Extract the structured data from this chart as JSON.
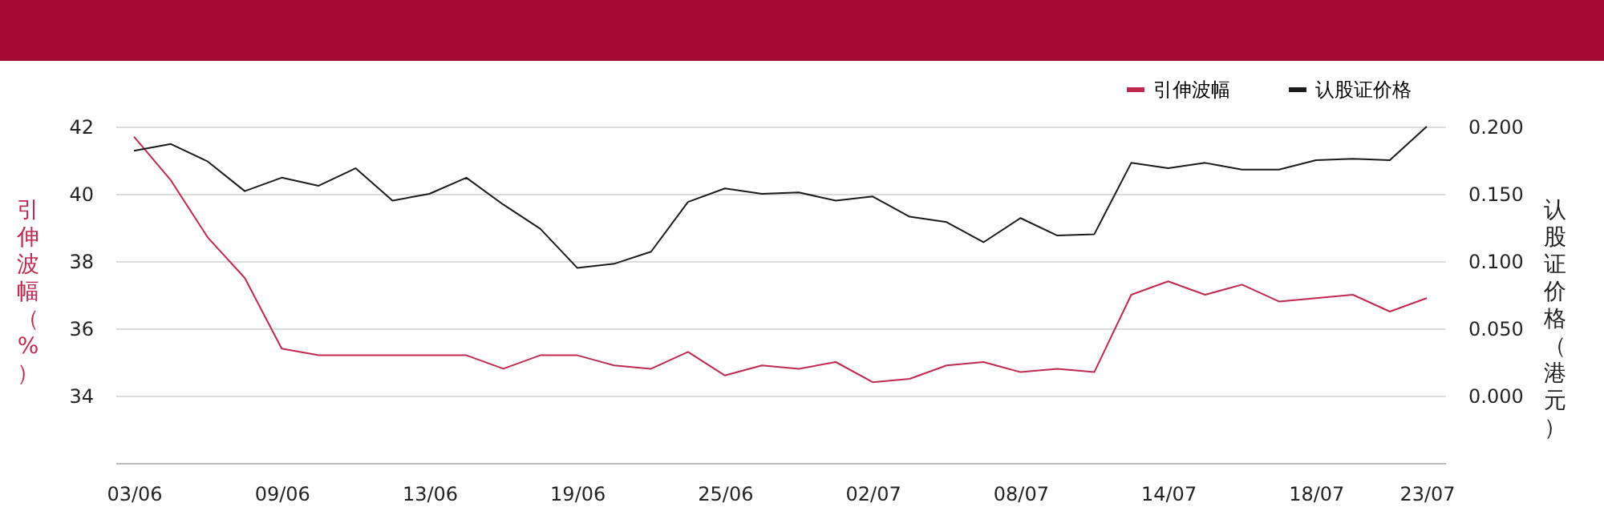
{
  "chart_data": {
    "type": "line",
    "ylabel": "引伸波幅（%）",
    "y2label": "认股证价格（港元）",
    "categories": [
      "03/06",
      null,
      null,
      null,
      "09/06",
      null,
      null,
      null,
      "13/06",
      null,
      null,
      null,
      "19/06",
      null,
      null,
      null,
      "25/06",
      null,
      null,
      null,
      "02/07",
      null,
      null,
      null,
      "08/07",
      null,
      null,
      null,
      "14/07",
      null,
      null,
      null,
      "18/07",
      null,
      null,
      "23/07"
    ],
    "series": [
      {
        "name": "引伸波幅",
        "color": "#c0284e",
        "values": [
          41.7,
          40.4,
          38.7,
          37.5,
          35.4,
          35.2,
          35.2,
          35.2,
          35.2,
          35.2,
          34.8,
          35.2,
          35.2,
          34.9,
          34.8,
          35.3,
          34.6,
          34.9,
          34.8,
          35.0,
          34.4,
          34.5,
          34.9,
          35.0,
          34.7,
          34.8,
          34.7,
          37.0,
          37.4,
          37.0,
          37.3,
          36.8,
          36.9,
          37.0,
          36.5,
          36.9
        ]
      },
      {
        "name": "认股证价格",
        "color": "#1a1a1a",
        "axis": "y2",
        "values": [
          0.182,
          0.187,
          0.174,
          0.152,
          0.162,
          0.156,
          0.169,
          0.145,
          0.15,
          0.162,
          0.142,
          0.124,
          0.095,
          0.098,
          0.107,
          0.144,
          0.154,
          0.15,
          0.151,
          0.145,
          0.148,
          0.133,
          0.129,
          0.114,
          0.132,
          0.119,
          0.12,
          0.173,
          0.169,
          0.173,
          0.168,
          0.168,
          0.175,
          0.176,
          0.175,
          0.2
        ]
      }
    ],
    "ylim": [
      32,
      42
    ],
    "yticks": [
      34,
      36,
      38,
      40,
      42
    ],
    "y2lim": [
      -0.05,
      0.2
    ],
    "y2ticks": [
      {
        "value": 0,
        "label": "0.000"
      },
      {
        "value": 0.05,
        "label": "0.050"
      },
      {
        "value": 0.1,
        "label": "0.100"
      },
      {
        "value": 0.15,
        "label": "0.150"
      },
      {
        "value": 0.2,
        "label": "0.200"
      }
    ],
    "grid": "y",
    "legend": "top right",
    "marker": "none",
    "line_style": "solid"
  }
}
